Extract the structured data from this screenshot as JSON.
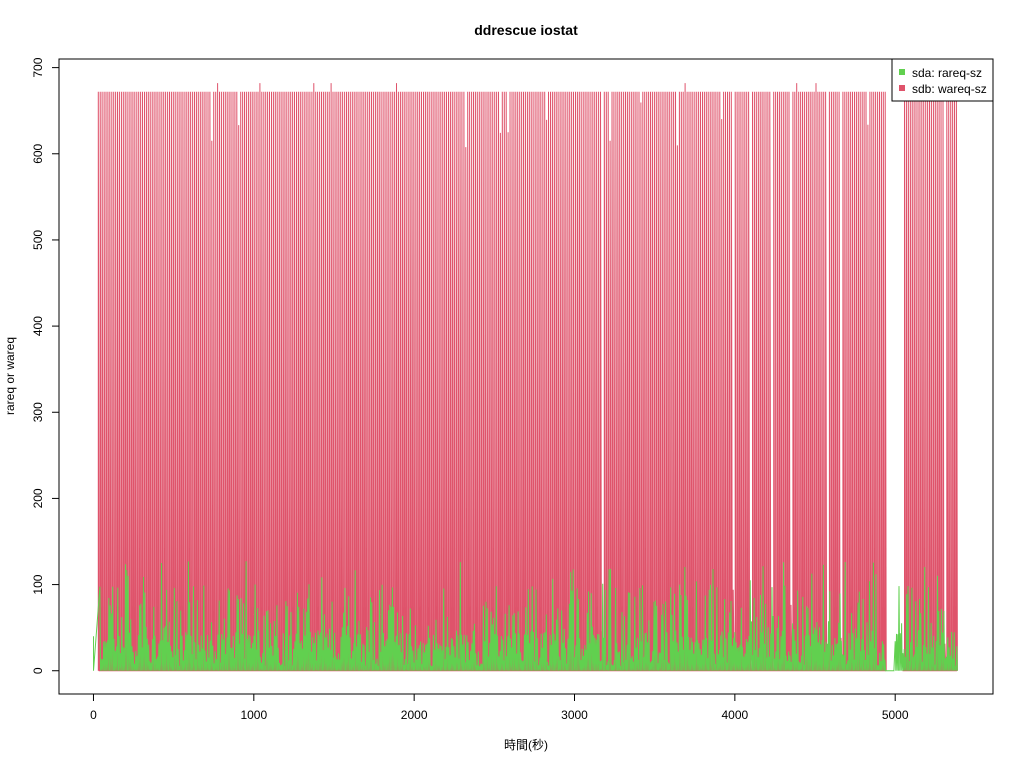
{
  "chart_data": {
    "type": "line",
    "title": "ddrescue iostat",
    "xlabel": "時間(秒)",
    "ylabel": "rareq or wareq",
    "xlim": [
      -215,
      5610
    ],
    "ylim": [
      -27,
      710
    ],
    "xticks": [
      0,
      1000,
      2000,
      3000,
      4000,
      5000
    ],
    "yticks": [
      0,
      100,
      200,
      300,
      400,
      500,
      600,
      700
    ],
    "xtick_labels": [
      "0",
      "1000",
      "2000",
      "3000",
      "4000",
      "5000"
    ],
    "ytick_labels": [
      "0",
      "100",
      "200",
      "300",
      "400",
      "500",
      "600",
      "700"
    ],
    "legend_position": "top-right",
    "grid": false,
    "series": [
      {
        "name": "sda: rareq-sz",
        "color": "#61d04f",
        "style": "spiky-vertical-lines",
        "x_range": [
          0,
          5390
        ],
        "baseline": 0,
        "typical_peak_range": [
          20,
          120
        ],
        "max_peak": 128
      },
      {
        "name": "sdb: wareq-sz",
        "color": "#df536b",
        "style": "spiky-vertical-lines",
        "x_range": [
          30,
          5390
        ],
        "baseline": 0,
        "typical_peak": 672,
        "max_peak": 682,
        "gap_x_range": [
          4950,
          5050
        ]
      }
    ]
  }
}
